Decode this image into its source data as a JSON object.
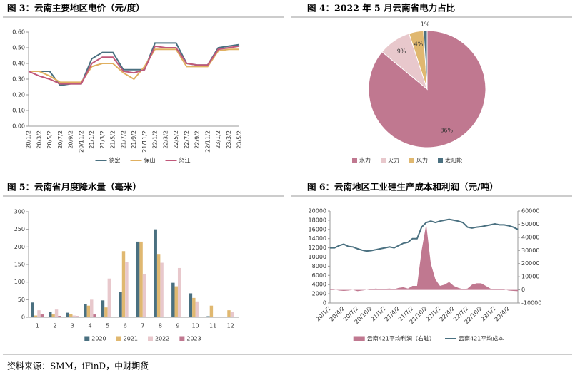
{
  "source": "资料来源：SMM，iFinD，中财期货",
  "chart_data": [
    {
      "type": "line",
      "title": "图 3：云南主要地区电价（元/度）",
      "categories": [
        "20/1/2",
        "20/3/2",
        "20/5/2",
        "20/7/2",
        "20/9/2",
        "20/11/2",
        "21/1/2",
        "21/3/2",
        "21/5/2",
        "21/7/2",
        "21/9/2",
        "21/11/2",
        "22/1/2",
        "22/3/2",
        "22/5/2",
        "22/7/2",
        "22/9/2",
        "22/11/2",
        "23/1/2",
        "23/3/2",
        "23/5/2"
      ],
      "series": [
        {
          "name": "德宏",
          "color": "#4a7080",
          "values": [
            0.35,
            0.35,
            0.35,
            0.26,
            0.27,
            0.27,
            0.43,
            0.47,
            0.47,
            0.36,
            0.36,
            0.36,
            0.53,
            0.53,
            0.53,
            0.4,
            0.39,
            0.39,
            0.5,
            0.51,
            0.52
          ]
        },
        {
          "name": "保山",
          "color": "#e0b060",
          "values": [
            0.35,
            0.35,
            0.32,
            0.28,
            0.28,
            0.28,
            0.38,
            0.4,
            0.4,
            0.34,
            0.3,
            0.38,
            0.49,
            0.49,
            0.49,
            0.38,
            0.38,
            0.38,
            0.48,
            0.49,
            0.49
          ]
        },
        {
          "name": "怒江",
          "color": "#c0587a",
          "values": [
            0.35,
            0.32,
            0.3,
            0.27,
            0.27,
            0.27,
            0.4,
            0.44,
            0.44,
            0.35,
            0.34,
            0.36,
            0.51,
            0.5,
            0.5,
            0.4,
            0.39,
            0.39,
            0.49,
            0.5,
            0.51
          ]
        }
      ],
      "ylim": [
        0,
        0.6
      ],
      "yticks": [
        {
          "value": 0,
          "label": "0.00"
        },
        {
          "value": 0.1,
          "label": "0.10"
        },
        {
          "value": 0.2,
          "label": "0.20"
        },
        {
          "value": 0.3,
          "label": "0.30"
        },
        {
          "value": 0.4,
          "label": "0.40"
        },
        {
          "value": 0.5,
          "label": "0.50"
        },
        {
          "value": 0.6,
          "label": "0.60"
        }
      ],
      "grid": false,
      "legend": "bottom"
    },
    {
      "type": "pie",
      "title": "图 4：2022 年 5 月云南省电力占比",
      "categories": [
        "水力",
        "火力",
        "风力",
        "太阳能"
      ],
      "values": [
        86,
        9,
        4,
        1
      ],
      "value_labels": [
        "86%",
        "9%",
        "4%",
        "1%"
      ],
      "colors": [
        "#c07890",
        "#e8c8cc",
        "#e0b870",
        "#4a7080"
      ],
      "legend": "bottom"
    },
    {
      "type": "bar",
      "title": "图 5：云南省月度降水量（毫米）",
      "categories": [
        "1",
        "2",
        "3",
        "4",
        "5",
        "6",
        "7",
        "8",
        "9",
        "10",
        "11",
        "12"
      ],
      "series": [
        {
          "name": "2020",
          "color": "#4a7080",
          "values": [
            42,
            16,
            13,
            38,
            48,
            72,
            215,
            250,
            98,
            68,
            3,
            2
          ]
        },
        {
          "name": "2021",
          "color": "#e0b870",
          "values": [
            5,
            8,
            10,
            33,
            28,
            188,
            215,
            180,
            88,
            55,
            33,
            20
          ]
        },
        {
          "name": "2022",
          "color": "#e8c8cc",
          "values": [
            20,
            22,
            5,
            50,
            110,
            158,
            122,
            155,
            140,
            45,
            2,
            15
          ]
        },
        {
          "name": "2023",
          "color": "#c07890",
          "values": [
            8,
            4,
            3,
            8,
            2,
            null,
            null,
            null,
            null,
            null,
            null,
            null
          ]
        }
      ],
      "ylim": [
        0,
        300
      ],
      "yticks": [
        0,
        50,
        100,
        150,
        200,
        250,
        300
      ],
      "grid": false,
      "legend": "bottom"
    },
    {
      "type": "line",
      "title": "图 6：云南地区工业硅生产成本和利润（元/吨）",
      "categories": [
        "20/1/2",
        null,
        null,
        "20/4/2",
        null,
        null,
        "20/7/2",
        null,
        null,
        "20/10/2",
        null,
        null,
        "21/1/2",
        null,
        null,
        "21/4/2",
        null,
        null,
        "21/7/2",
        null,
        null,
        "21/10/2",
        null,
        null,
        "22/1/2",
        null,
        null,
        "22/4/2",
        null,
        null,
        "22/7/2",
        null,
        null,
        "22/10/2",
        null,
        null,
        "23/1/2",
        null,
        null,
        "23/4/2",
        null,
        null
      ],
      "series": [
        {
          "name": "云南421平均利润（右轴）",
          "color": "#c07890",
          "type": "area",
          "axis": "y2",
          "values": [
            500,
            200,
            -500,
            -800,
            -500,
            0,
            -1000,
            -500,
            0,
            500,
            1000,
            500,
            800,
            1000,
            500,
            1500,
            2000,
            1000,
            3000,
            3000,
            30000,
            50000,
            20000,
            8000,
            3000,
            4000,
            6000,
            3000,
            1500,
            500,
            1000,
            4000,
            5000,
            5000,
            3000,
            1000,
            500,
            500,
            300,
            -500,
            -800,
            -1000
          ]
        },
        {
          "name": "云南421平均成本",
          "color": "#4a7080",
          "values": [
            12000,
            12000,
            12500,
            12800,
            12300,
            12200,
            11800,
            11500,
            11300,
            11400,
            11600,
            11800,
            12000,
            12200,
            12000,
            12500,
            13000,
            13200,
            14000,
            14000,
            16500,
            17500,
            17800,
            17500,
            17800,
            18000,
            18200,
            18000,
            17800,
            17500,
            16500,
            16300,
            16500,
            16600,
            16800,
            17000,
            17200,
            17000,
            17000,
            16800,
            16500,
            16000
          ]
        }
      ],
      "ylim": [
        0,
        20000
      ],
      "yticks": [
        0,
        2000,
        4000,
        6000,
        8000,
        10000,
        12000,
        14000,
        16000,
        18000,
        20000
      ],
      "y2lim": [
        -10000,
        60000
      ],
      "y2ticks": [
        -10000,
        0,
        10000,
        20000,
        30000,
        40000,
        50000,
        60000
      ],
      "grid": false,
      "legend": "bottom"
    }
  ]
}
